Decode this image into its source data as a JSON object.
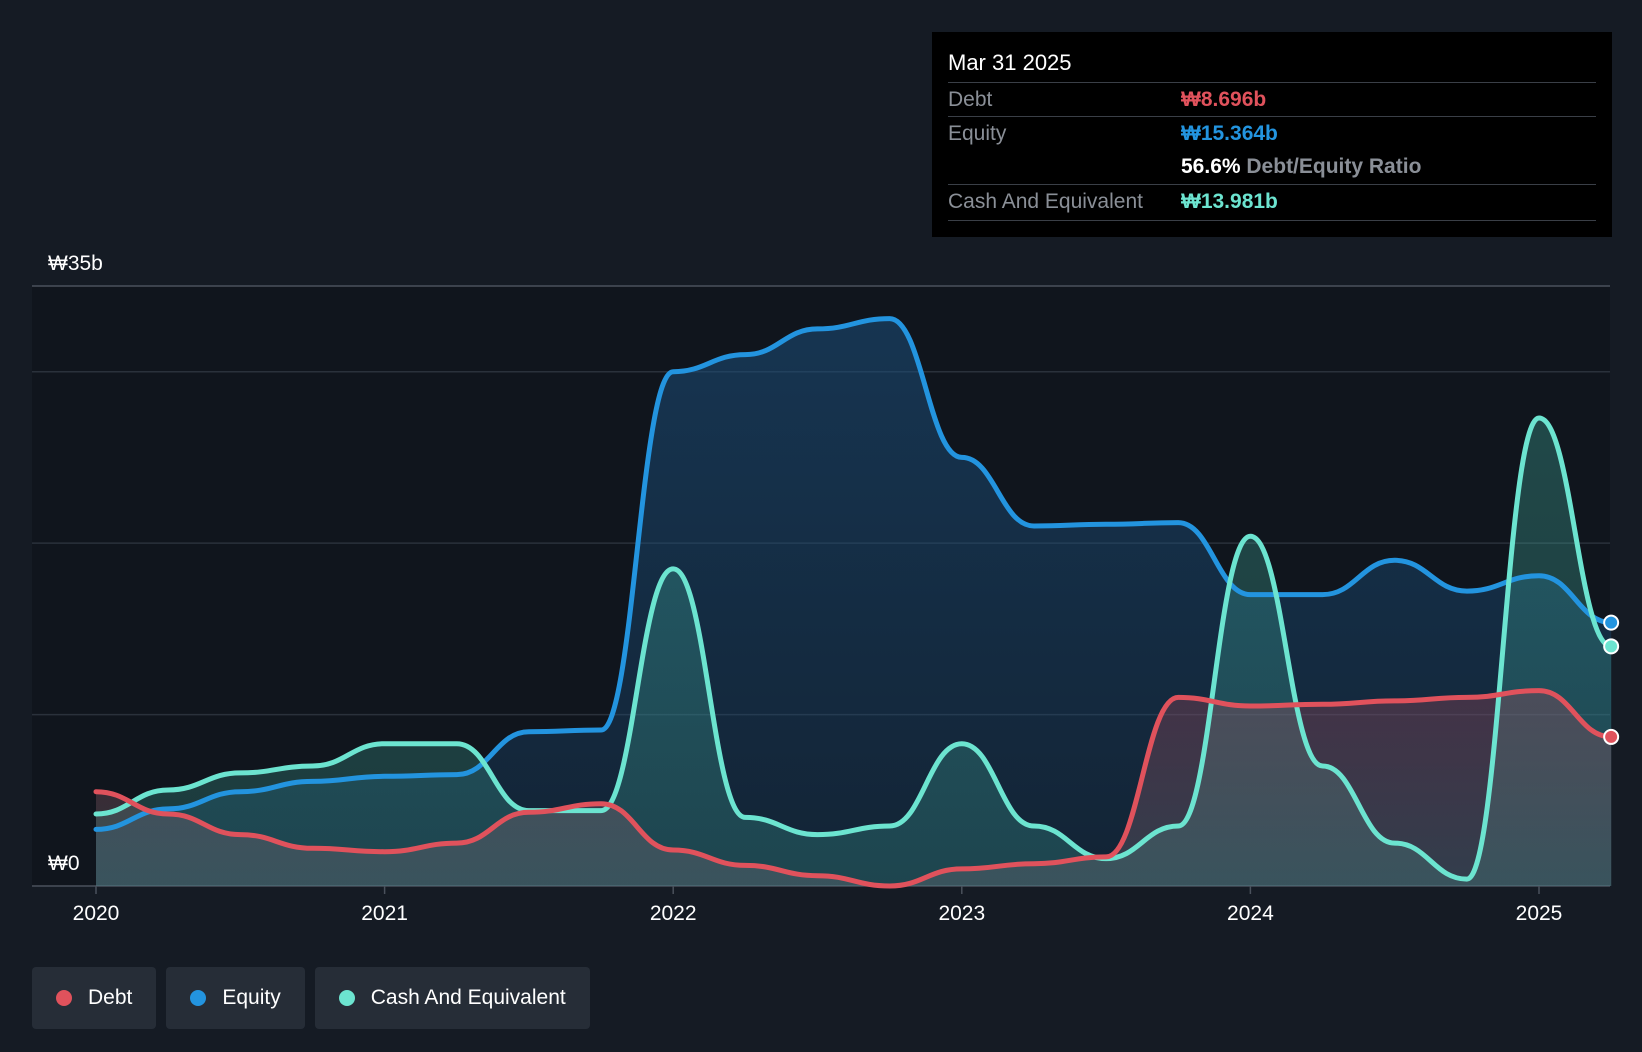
{
  "chart_data": {
    "type": "area",
    "title": "",
    "xlabel": "",
    "ylabel": "",
    "ylim": [
      0,
      35
    ],
    "y_unit": "₩b",
    "y_axis_labels": [
      "₩35b",
      "₩0"
    ],
    "x_ticks": [
      {
        "label": "2020",
        "value": 2020.0
      },
      {
        "label": "2021",
        "value": 2021.0
      },
      {
        "label": "2022",
        "value": 2022.0
      },
      {
        "label": "2023",
        "value": 2023.0
      },
      {
        "label": "2024",
        "value": 2024.0
      },
      {
        "label": "2025",
        "value": 2025.0
      }
    ],
    "x_range": [
      2019.78,
      2025.25
    ],
    "series": [
      {
        "name": "Equity",
        "color": "#2394df",
        "points": [
          [
            2020.0,
            3.3
          ],
          [
            2020.25,
            4.5
          ],
          [
            2020.5,
            5.5
          ],
          [
            2020.75,
            6.1
          ],
          [
            2021.0,
            6.4
          ],
          [
            2021.25,
            6.5
          ],
          [
            2021.5,
            9.0
          ],
          [
            2021.75,
            9.1
          ],
          [
            2022.0,
            30.0
          ],
          [
            2022.25,
            31.0
          ],
          [
            2022.5,
            32.5
          ],
          [
            2022.75,
            33.1
          ],
          [
            2023.0,
            25.0
          ],
          [
            2023.25,
            21.0
          ],
          [
            2023.5,
            21.1
          ],
          [
            2023.75,
            21.2
          ],
          [
            2024.0,
            17.0
          ],
          [
            2024.25,
            17.0
          ],
          [
            2024.5,
            19.0
          ],
          [
            2024.75,
            17.2
          ],
          [
            2025.0,
            18.1
          ],
          [
            2025.25,
            15.364
          ]
        ]
      },
      {
        "name": "Cash And Equivalent",
        "color": "#6ce4d0",
        "points": [
          [
            2020.0,
            4.2
          ],
          [
            2020.25,
            5.6
          ],
          [
            2020.5,
            6.6
          ],
          [
            2020.75,
            7.0
          ],
          [
            2021.0,
            8.3
          ],
          [
            2021.25,
            8.3
          ],
          [
            2021.5,
            4.4
          ],
          [
            2021.75,
            4.4
          ],
          [
            2022.0,
            18.5
          ],
          [
            2022.25,
            4.0
          ],
          [
            2022.5,
            3.0
          ],
          [
            2022.75,
            3.5
          ],
          [
            2023.0,
            8.3
          ],
          [
            2023.25,
            3.5
          ],
          [
            2023.5,
            1.6
          ],
          [
            2023.75,
            3.5
          ],
          [
            2024.0,
            20.4
          ],
          [
            2024.25,
            7.0
          ],
          [
            2024.5,
            2.5
          ],
          [
            2024.75,
            0.4
          ],
          [
            2025.0,
            27.3
          ],
          [
            2025.25,
            13.981
          ]
        ]
      },
      {
        "name": "Debt",
        "color": "#e0525c",
        "points": [
          [
            2020.0,
            5.5
          ],
          [
            2020.25,
            4.2
          ],
          [
            2020.5,
            3.0
          ],
          [
            2020.75,
            2.2
          ],
          [
            2021.0,
            2.0
          ],
          [
            2021.25,
            2.5
          ],
          [
            2021.5,
            4.3
          ],
          [
            2021.75,
            4.8
          ],
          [
            2022.0,
            2.1
          ],
          [
            2022.25,
            1.2
          ],
          [
            2022.5,
            0.6
          ],
          [
            2022.75,
            0.0
          ],
          [
            2023.0,
            1.0
          ],
          [
            2023.25,
            1.3
          ],
          [
            2023.5,
            1.7
          ],
          [
            2023.75,
            11.0
          ],
          [
            2024.0,
            10.5
          ],
          [
            2024.25,
            10.6
          ],
          [
            2024.5,
            10.8
          ],
          [
            2024.75,
            11.0
          ],
          [
            2025.0,
            11.4
          ],
          [
            2025.25,
            8.696
          ]
        ]
      }
    ],
    "legend": [
      "Debt",
      "Equity",
      "Cash And Equivalent"
    ]
  },
  "tooltip": {
    "date": "Mar 31 2025",
    "debt_label": "Debt",
    "debt_value": "₩8.696b",
    "equity_label": "Equity",
    "equity_value": "₩15.364b",
    "ratio_pct": "56.6%",
    "ratio_label": "Debt/Equity Ratio",
    "cash_label": "Cash And Equivalent",
    "cash_value": "₩13.981b"
  },
  "legend": {
    "debt": {
      "label": "Debt",
      "color": "#e0525c"
    },
    "equity": {
      "label": "Equity",
      "color": "#2394df"
    },
    "cash": {
      "label": "Cash And Equivalent",
      "color": "#6ce4d0"
    }
  },
  "colors": {
    "background": "#151b24",
    "plot_background": "#10151d",
    "grid": "#2a313b"
  }
}
